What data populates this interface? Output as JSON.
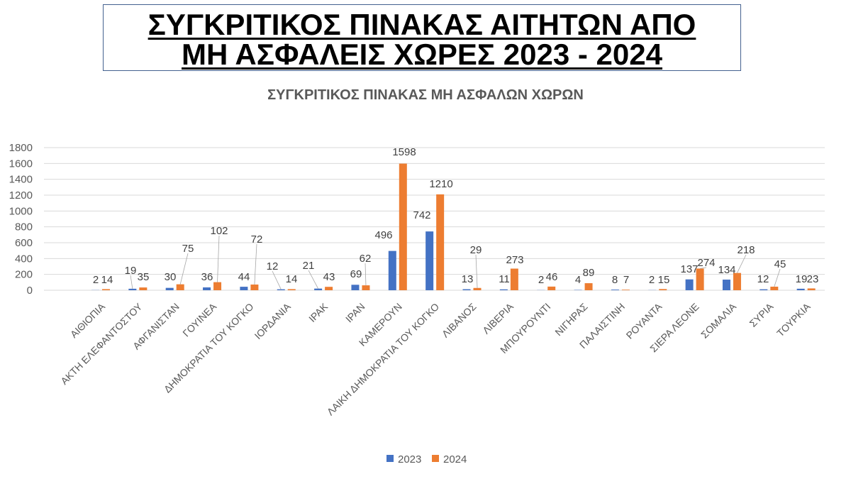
{
  "slide": {
    "title_line1": "ΣΥΓΚΡΙΤΙΚΟΣ ΠΙΝΑΚΑΣ ΑΙΤΗΤΩΝ ΑΠΟ",
    "title_line2": "ΜΗ ΑΣΦΑΛΕΙΣ ΧΩΡΕΣ 2023 - 2024"
  },
  "chart_data": {
    "type": "bar",
    "title": "ΣΥΓΚΡΙΤΙΚΟΣ ΠΙΝΑΚΑΣ ΜΗ ΑΣΦΑΛΩΝ ΧΩΡΩΝ",
    "categories": [
      "ΑΙΘΙΟΠΙΑ",
      "ΑΚΤΗ ΕΛΕΦΑΝΤΟΣΤΟΥ",
      "ΑΦΓΑΝΙΣΤΑΝ",
      "ΓΟΥΙΝΕΑ",
      "ΔΗΜΟΚΡΑΤΙΑ ΤΟΥ ΚΟΓΚΟ",
      "ΙΟΡΔΑΝΙΑ",
      "ΙΡΑΚ",
      "ΙΡΑΝ",
      "ΚΑΜΕΡΟΥΝ",
      "ΛΑΙΚΗ ΔΗΜΟΚΡΑΤΙΑ ΤΟΥ ΚΟΓΚΟ",
      "ΛΙΒΑΝΟΣ",
      "ΛΙΒΕΡΙΑ",
      "ΜΠΟΥΡΟΥΝΤΙ",
      "ΝΙΓΗΡΑΣ",
      "ΠΑΛΑΙΣΤΙΝΗ",
      "ΡΟΥΑΝΤΑ",
      "ΣΙΕΡΑ ΛΕΟΝΕ",
      "ΣΟΜΑΛΙΑ",
      "ΣΥΡΙΑ",
      "ΤΟΥΡΚΙΑ"
    ],
    "series": [
      {
        "name": "2023",
        "color": "#4472C4",
        "values": [
          2,
          19,
          30,
          36,
          44,
          12,
          21,
          69,
          496,
          742,
          13,
          11,
          2,
          4,
          8,
          2,
          137,
          134,
          12,
          19
        ]
      },
      {
        "name": "2024",
        "color": "#ED7D31",
        "values": [
          14,
          35,
          75,
          102,
          72,
          14,
          43,
          62,
          1598,
          1210,
          29,
          273,
          46,
          89,
          7,
          15,
          274,
          218,
          45,
          23
        ]
      }
    ],
    "ylim": [
      0,
      1800
    ],
    "yticks": [
      0,
      200,
      400,
      600,
      800,
      1000,
      1200,
      1400,
      1600,
      1800
    ],
    "grid": true,
    "legend": "bottom",
    "data_labels": true
  }
}
